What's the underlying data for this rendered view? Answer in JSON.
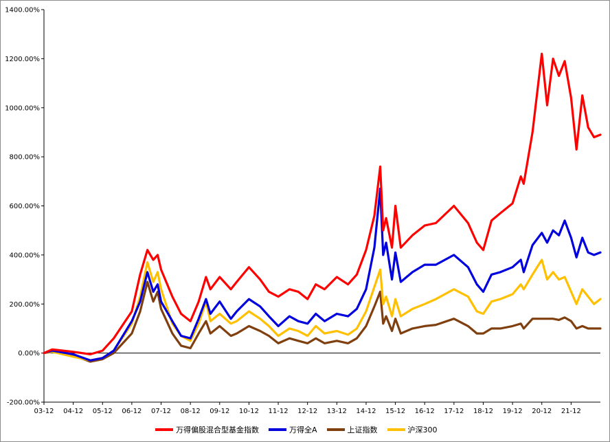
{
  "chart_data": {
    "type": "line",
    "title": "",
    "xlabel": "",
    "ylabel": "",
    "ylim": [
      -200,
      1400
    ],
    "y_ticks": [
      -200,
      0,
      200,
      400,
      600,
      800,
      1000,
      1200,
      1400
    ],
    "y_tick_labels": [
      "-200.00%",
      "0.00%",
      "200.00%",
      "400.00%",
      "600.00%",
      "800.00%",
      "1000.00%",
      "1200.00%",
      "1400.00%"
    ],
    "x_range": [
      2003.917,
      2022.917
    ],
    "x_tick_values": [
      2003.917,
      2004.917,
      2005.917,
      2006.917,
      2007.917,
      2008.917,
      2009.917,
      2010.917,
      2011.917,
      2012.917,
      2013.917,
      2014.917,
      2015.917,
      2016.917,
      2017.917,
      2018.917,
      2019.917,
      2020.917,
      2021.917
    ],
    "x_tick_labels": [
      "03-12",
      "04-12",
      "05-12",
      "06-12",
      "07-12",
      "08-12",
      "09-12",
      "10-12",
      "11-12",
      "12-12",
      "13-12",
      "14-12",
      "15-12",
      "16-12",
      "17-12",
      "18-12",
      "19-12",
      "20-12",
      "21-12"
    ],
    "grid": false,
    "legend_position": "bottom",
    "series": [
      {
        "name": "万得偏股混合型基金指数",
        "color": "#ff0000",
        "points": [
          [
            2003.917,
            0
          ],
          [
            2004.2,
            15
          ],
          [
            2004.917,
            5
          ],
          [
            2005.5,
            -5
          ],
          [
            2005.917,
            10
          ],
          [
            2006.3,
            60
          ],
          [
            2006.917,
            170
          ],
          [
            2007.2,
            320
          ],
          [
            2007.45,
            420
          ],
          [
            2007.65,
            380
          ],
          [
            2007.8,
            400
          ],
          [
            2007.917,
            340
          ],
          [
            2008.3,
            230
          ],
          [
            2008.6,
            160
          ],
          [
            2008.917,
            130
          ],
          [
            2009.2,
            210
          ],
          [
            2009.45,
            310
          ],
          [
            2009.6,
            260
          ],
          [
            2009.917,
            310
          ],
          [
            2010.3,
            260
          ],
          [
            2010.5,
            290
          ],
          [
            2010.917,
            350
          ],
          [
            2011.3,
            300
          ],
          [
            2011.6,
            250
          ],
          [
            2011.917,
            230
          ],
          [
            2012.3,
            260
          ],
          [
            2012.6,
            250
          ],
          [
            2012.917,
            220
          ],
          [
            2013.2,
            280
          ],
          [
            2013.5,
            260
          ],
          [
            2013.917,
            310
          ],
          [
            2014.3,
            280
          ],
          [
            2014.6,
            320
          ],
          [
            2014.917,
            420
          ],
          [
            2015.2,
            560
          ],
          [
            2015.4,
            760
          ],
          [
            2015.5,
            500
          ],
          [
            2015.6,
            550
          ],
          [
            2015.8,
            430
          ],
          [
            2015.917,
            600
          ],
          [
            2016.1,
            430
          ],
          [
            2016.5,
            480
          ],
          [
            2016.917,
            520
          ],
          [
            2017.3,
            530
          ],
          [
            2017.917,
            600
          ],
          [
            2018.4,
            530
          ],
          [
            2018.7,
            450
          ],
          [
            2018.917,
            420
          ],
          [
            2019.2,
            540
          ],
          [
            2019.5,
            570
          ],
          [
            2019.917,
            610
          ],
          [
            2020.2,
            720
          ],
          [
            2020.3,
            690
          ],
          [
            2020.6,
            900
          ],
          [
            2020.917,
            1220
          ],
          [
            2021.1,
            1010
          ],
          [
            2021.3,
            1200
          ],
          [
            2021.5,
            1130
          ],
          [
            2021.7,
            1190
          ],
          [
            2021.917,
            1040
          ],
          [
            2022.1,
            830
          ],
          [
            2022.3,
            1050
          ],
          [
            2022.5,
            920
          ],
          [
            2022.7,
            880
          ],
          [
            2022.917,
            890
          ]
        ]
      },
      {
        "name": "万得全A",
        "color": "#0000dd",
        "points": [
          [
            2003.917,
            0
          ],
          [
            2004.2,
            10
          ],
          [
            2004.917,
            -5
          ],
          [
            2005.5,
            -30
          ],
          [
            2005.917,
            -20
          ],
          [
            2006.3,
            10
          ],
          [
            2006.917,
            130
          ],
          [
            2007.2,
            210
          ],
          [
            2007.45,
            330
          ],
          [
            2007.65,
            250
          ],
          [
            2007.8,
            280
          ],
          [
            2007.917,
            210
          ],
          [
            2008.3,
            130
          ],
          [
            2008.6,
            70
          ],
          [
            2008.917,
            60
          ],
          [
            2009.2,
            140
          ],
          [
            2009.45,
            220
          ],
          [
            2009.6,
            160
          ],
          [
            2009.917,
            210
          ],
          [
            2010.3,
            140
          ],
          [
            2010.5,
            170
          ],
          [
            2010.917,
            220
          ],
          [
            2011.3,
            190
          ],
          [
            2011.6,
            150
          ],
          [
            2011.917,
            110
          ],
          [
            2012.3,
            150
          ],
          [
            2012.6,
            130
          ],
          [
            2012.917,
            120
          ],
          [
            2013.2,
            160
          ],
          [
            2013.5,
            130
          ],
          [
            2013.917,
            160
          ],
          [
            2014.3,
            150
          ],
          [
            2014.6,
            180
          ],
          [
            2014.917,
            260
          ],
          [
            2015.2,
            430
          ],
          [
            2015.4,
            670
          ],
          [
            2015.5,
            400
          ],
          [
            2015.6,
            450
          ],
          [
            2015.8,
            300
          ],
          [
            2015.917,
            410
          ],
          [
            2016.1,
            290
          ],
          [
            2016.5,
            330
          ],
          [
            2016.917,
            360
          ],
          [
            2017.3,
            360
          ],
          [
            2017.917,
            400
          ],
          [
            2018.4,
            350
          ],
          [
            2018.7,
            280
          ],
          [
            2018.917,
            250
          ],
          [
            2019.2,
            320
          ],
          [
            2019.5,
            330
          ],
          [
            2019.917,
            350
          ],
          [
            2020.2,
            380
          ],
          [
            2020.3,
            330
          ],
          [
            2020.6,
            440
          ],
          [
            2020.917,
            490
          ],
          [
            2021.1,
            450
          ],
          [
            2021.3,
            500
          ],
          [
            2021.5,
            480
          ],
          [
            2021.7,
            540
          ],
          [
            2021.917,
            470
          ],
          [
            2022.1,
            390
          ],
          [
            2022.3,
            470
          ],
          [
            2022.5,
            410
          ],
          [
            2022.7,
            400
          ],
          [
            2022.917,
            410
          ]
        ]
      },
      {
        "name": "上证指数",
        "color": "#7f3f0f",
        "points": [
          [
            2003.917,
            0
          ],
          [
            2004.2,
            5
          ],
          [
            2004.917,
            -10
          ],
          [
            2005.5,
            -35
          ],
          [
            2005.917,
            -25
          ],
          [
            2006.3,
            0
          ],
          [
            2006.917,
            80
          ],
          [
            2007.2,
            170
          ],
          [
            2007.45,
            290
          ],
          [
            2007.65,
            210
          ],
          [
            2007.8,
            250
          ],
          [
            2007.917,
            180
          ],
          [
            2008.3,
            80
          ],
          [
            2008.6,
            30
          ],
          [
            2008.917,
            20
          ],
          [
            2009.2,
            80
          ],
          [
            2009.45,
            130
          ],
          [
            2009.6,
            80
          ],
          [
            2009.917,
            110
          ],
          [
            2010.3,
            70
          ],
          [
            2010.5,
            80
          ],
          [
            2010.917,
            110
          ],
          [
            2011.3,
            90
          ],
          [
            2011.6,
            70
          ],
          [
            2011.917,
            40
          ],
          [
            2012.3,
            60
          ],
          [
            2012.6,
            50
          ],
          [
            2012.917,
            40
          ],
          [
            2013.2,
            60
          ],
          [
            2013.5,
            40
          ],
          [
            2013.917,
            50
          ],
          [
            2014.3,
            40
          ],
          [
            2014.6,
            60
          ],
          [
            2014.917,
            110
          ],
          [
            2015.2,
            190
          ],
          [
            2015.4,
            250
          ],
          [
            2015.5,
            120
          ],
          [
            2015.6,
            150
          ],
          [
            2015.8,
            90
          ],
          [
            2015.917,
            140
          ],
          [
            2016.1,
            80
          ],
          [
            2016.5,
            100
          ],
          [
            2016.917,
            110
          ],
          [
            2017.3,
            115
          ],
          [
            2017.917,
            140
          ],
          [
            2018.4,
            110
          ],
          [
            2018.7,
            80
          ],
          [
            2018.917,
            80
          ],
          [
            2019.2,
            100
          ],
          [
            2019.5,
            100
          ],
          [
            2019.917,
            110
          ],
          [
            2020.2,
            120
          ],
          [
            2020.3,
            100
          ],
          [
            2020.6,
            140
          ],
          [
            2020.917,
            140
          ],
          [
            2021.1,
            140
          ],
          [
            2021.3,
            140
          ],
          [
            2021.5,
            135
          ],
          [
            2021.7,
            145
          ],
          [
            2021.917,
            130
          ],
          [
            2022.1,
            100
          ],
          [
            2022.3,
            110
          ],
          [
            2022.5,
            100
          ],
          [
            2022.7,
            100
          ],
          [
            2022.917,
            100
          ]
        ]
      },
      {
        "name": "沪深300",
        "color": "#ffc000",
        "points": [
          [
            2003.917,
            0
          ],
          [
            2004.2,
            5
          ],
          [
            2004.917,
            -15
          ],
          [
            2005.5,
            -30
          ],
          [
            2005.917,
            -20
          ],
          [
            2006.3,
            10
          ],
          [
            2006.917,
            120
          ],
          [
            2007.2,
            230
          ],
          [
            2007.45,
            370
          ],
          [
            2007.65,
            290
          ],
          [
            2007.8,
            330
          ],
          [
            2007.917,
            260
          ],
          [
            2008.3,
            120
          ],
          [
            2008.6,
            70
          ],
          [
            2008.917,
            50
          ],
          [
            2009.2,
            120
          ],
          [
            2009.45,
            210
          ],
          [
            2009.6,
            130
          ],
          [
            2009.917,
            160
          ],
          [
            2010.3,
            120
          ],
          [
            2010.5,
            130
          ],
          [
            2010.917,
            170
          ],
          [
            2011.3,
            140
          ],
          [
            2011.6,
            110
          ],
          [
            2011.917,
            70
          ],
          [
            2012.3,
            100
          ],
          [
            2012.6,
            90
          ],
          [
            2012.917,
            70
          ],
          [
            2013.2,
            110
          ],
          [
            2013.5,
            80
          ],
          [
            2013.917,
            90
          ],
          [
            2014.3,
            75
          ],
          [
            2014.6,
            100
          ],
          [
            2014.917,
            170
          ],
          [
            2015.2,
            270
          ],
          [
            2015.4,
            340
          ],
          [
            2015.5,
            200
          ],
          [
            2015.6,
            230
          ],
          [
            2015.8,
            150
          ],
          [
            2015.917,
            220
          ],
          [
            2016.1,
            150
          ],
          [
            2016.5,
            180
          ],
          [
            2016.917,
            200
          ],
          [
            2017.3,
            220
          ],
          [
            2017.917,
            260
          ],
          [
            2018.4,
            230
          ],
          [
            2018.7,
            170
          ],
          [
            2018.917,
            160
          ],
          [
            2019.2,
            210
          ],
          [
            2019.5,
            220
          ],
          [
            2019.917,
            240
          ],
          [
            2020.2,
            280
          ],
          [
            2020.3,
            260
          ],
          [
            2020.6,
            320
          ],
          [
            2020.917,
            380
          ],
          [
            2021.1,
            300
          ],
          [
            2021.3,
            330
          ],
          [
            2021.5,
            300
          ],
          [
            2021.7,
            310
          ],
          [
            2021.917,
            250
          ],
          [
            2022.1,
            200
          ],
          [
            2022.3,
            260
          ],
          [
            2022.5,
            230
          ],
          [
            2022.7,
            200
          ],
          [
            2022.917,
            220
          ]
        ]
      }
    ]
  }
}
